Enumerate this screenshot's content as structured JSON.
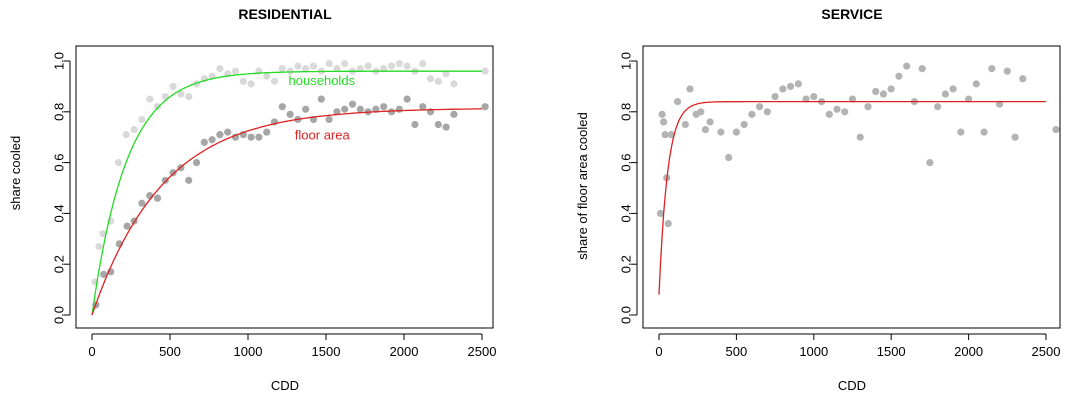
{
  "chart_data": [
    {
      "type": "scatter",
      "title": "RESIDENTIAL",
      "xlabel": "CDD",
      "ylabel": "share cooled",
      "xlim": [
        0,
        2500
      ],
      "ylim": [
        0,
        1
      ],
      "x_ticks": [
        "0",
        "500",
        "1000",
        "1500",
        "2000",
        "2500"
      ],
      "y_ticks": [
        "0.0",
        "0.2",
        "0.4",
        "0.6",
        "0.8",
        "1.0"
      ],
      "grid": false,
      "series": [
        {
          "name": "households",
          "point_color": "#d9d9d9",
          "curve_color": "#22dd22",
          "curve": {
            "asymptote": 0.96,
            "rate": 0.0045
          },
          "x": [
            20,
            45,
            70,
            120,
            170,
            220,
            270,
            320,
            370,
            420,
            470,
            520,
            570,
            620,
            670,
            720,
            770,
            820,
            870,
            920,
            970,
            1020,
            1070,
            1120,
            1170,
            1220,
            1270,
            1320,
            1370,
            1420,
            1470,
            1520,
            1570,
            1620,
            1670,
            1720,
            1770,
            1820,
            1870,
            1920,
            1970,
            2020,
            2070,
            2120,
            2170,
            2220,
            2270,
            2320,
            2520
          ],
          "y": [
            0.13,
            0.27,
            0.32,
            0.37,
            0.6,
            0.71,
            0.73,
            0.77,
            0.85,
            0.82,
            0.86,
            0.9,
            0.87,
            0.86,
            0.91,
            0.93,
            0.94,
            0.97,
            0.95,
            0.96,
            0.92,
            0.91,
            0.96,
            0.94,
            0.92,
            0.97,
            0.96,
            0.98,
            0.97,
            0.98,
            0.96,
            0.99,
            0.97,
            0.99,
            0.96,
            0.97,
            0.98,
            0.96,
            0.97,
            0.98,
            0.99,
            0.98,
            0.96,
            0.99,
            0.93,
            0.92,
            0.95,
            0.91,
            0.96
          ]
        },
        {
          "name": "floor area",
          "point_color": "#a6a6a6",
          "curve_color": "#dd2222",
          "curve": {
            "asymptote": 0.815,
            "rate": 0.0022
          },
          "x": [
            25,
            75,
            120,
            175,
            225,
            270,
            320,
            370,
            420,
            470,
            520,
            570,
            620,
            670,
            720,
            770,
            820,
            870,
            920,
            970,
            1020,
            1070,
            1120,
            1170,
            1220,
            1270,
            1320,
            1370,
            1420,
            1470,
            1520,
            1570,
            1620,
            1670,
            1720,
            1770,
            1820,
            1870,
            1920,
            1970,
            2020,
            2070,
            2120,
            2170,
            2220,
            2270,
            2320,
            2520
          ],
          "y": [
            0.04,
            0.16,
            0.17,
            0.28,
            0.35,
            0.37,
            0.44,
            0.47,
            0.46,
            0.53,
            0.56,
            0.58,
            0.53,
            0.6,
            0.68,
            0.69,
            0.71,
            0.72,
            0.7,
            0.71,
            0.7,
            0.7,
            0.72,
            0.76,
            0.82,
            0.79,
            0.77,
            0.81,
            0.77,
            0.85,
            0.77,
            0.8,
            0.81,
            0.83,
            0.81,
            0.8,
            0.81,
            0.82,
            0.8,
            0.81,
            0.85,
            0.75,
            0.82,
            0.8,
            0.75,
            0.74,
            0.79,
            0.82
          ]
        }
      ],
      "annotations": [
        {
          "text": "households",
          "x": 1260,
          "y": 0.905,
          "color": "#22dd22"
        },
        {
          "text": "floor area",
          "x": 1300,
          "y": 0.69,
          "color": "#dd2222"
        }
      ]
    },
    {
      "type": "scatter",
      "title": "SERVICE",
      "xlabel": "CDD",
      "ylabel": "share of floor area cooled",
      "xlim": [
        0,
        2500
      ],
      "ylim": [
        0,
        1
      ],
      "x_ticks": [
        "0",
        "500",
        "1000",
        "1500",
        "2000",
        "2500"
      ],
      "y_ticks": [
        "0.0",
        "0.2",
        "0.4",
        "0.6",
        "0.8",
        "1.0"
      ],
      "grid": false,
      "series": [
        {
          "name": "",
          "point_color": "#b3b3b3",
          "curve_color": "#dd2222",
          "curve": {
            "asymptote": 0.84,
            "rate": 0.018,
            "y0": 0.08
          },
          "x": [
            10,
            20,
            30,
            40,
            50,
            60,
            80,
            120,
            170,
            200,
            240,
            270,
            300,
            330,
            400,
            450,
            500,
            550,
            600,
            650,
            700,
            750,
            800,
            850,
            900,
            950,
            1000,
            1050,
            1100,
            1150,
            1200,
            1250,
            1300,
            1350,
            1400,
            1450,
            1500,
            1550,
            1600,
            1650,
            1700,
            1750,
            1800,
            1850,
            1900,
            1950,
            2000,
            2050,
            2100,
            2150,
            2200,
            2250,
            2300,
            2350,
            2600
          ],
          "y": [
            0.4,
            0.79,
            0.76,
            0.71,
            0.54,
            0.36,
            0.71,
            0.84,
            0.75,
            0.89,
            0.79,
            0.8,
            0.73,
            0.76,
            0.72,
            0.62,
            0.72,
            0.75,
            0.79,
            0.82,
            0.8,
            0.86,
            0.89,
            0.9,
            0.91,
            0.85,
            0.86,
            0.84,
            0.79,
            0.81,
            0.8,
            0.85,
            0.7,
            0.82,
            0.88,
            0.87,
            0.89,
            0.94,
            0.98,
            0.84,
            0.97,
            0.6,
            0.82,
            0.87,
            0.89,
            0.72,
            0.85,
            0.91,
            0.72,
            0.97,
            0.83,
            0.96,
            0.7,
            0.93,
            0.73
          ]
        }
      ]
    }
  ]
}
